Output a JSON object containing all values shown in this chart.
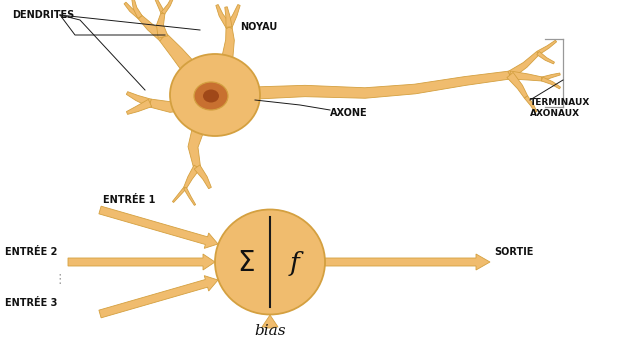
{
  "bg_color": "#ffffff",
  "neuron_color": "#f0bc6e",
  "neuron_light": "#f5d090",
  "neuron_edge": "#d4a040",
  "arrow_color": "#f0bc6e",
  "arrow_edge": "#d4a040",
  "nucleus_color": "#c87030",
  "nucleus_inner": "#a04818",
  "line_color": "#1a1a1a",
  "text_color": "#111111",
  "labels": {
    "dendrites": "DENDRITES",
    "noyau": "NOYAU",
    "axone": "AXONE",
    "terminaux": "TERMINAUX\nAXONAUX",
    "entree1": "ENTRÉE 1",
    "entree2": "ENTRÉE 2",
    "entree3": "ENTRÉE 3",
    "sortie": "SORTIE",
    "bias": "bias",
    "sigma": "Σ",
    "f": "f"
  },
  "fig_width": 6.24,
  "fig_height": 3.45
}
